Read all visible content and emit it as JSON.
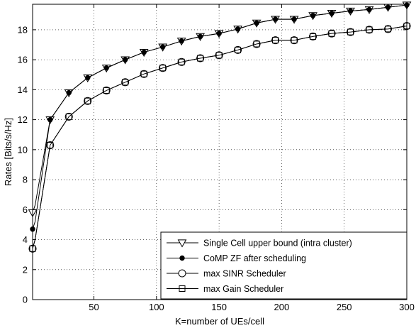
{
  "chart_data": {
    "type": "line",
    "title": "",
    "xlabel": "K=number of UEs/cell",
    "ylabel": "Rates [Bits/s/Hz]",
    "xlim": [
      1,
      300
    ],
    "ylim": [
      0,
      19.7
    ],
    "xticks": [
      50,
      100,
      150,
      200,
      250,
      300
    ],
    "yticks": [
      0,
      2,
      4,
      6,
      8,
      10,
      12,
      14,
      16,
      18
    ],
    "grid": true,
    "legend_position": "bottom-right",
    "x": [
      1,
      3,
      15,
      30,
      45,
      60,
      75,
      90,
      105,
      120,
      135,
      150,
      165,
      180,
      195,
      210,
      225,
      240,
      255,
      270,
      285,
      300
    ],
    "series": [
      {
        "name": "Single Cell upper bound (intra cluster)",
        "marker": "triangle-down",
        "values": [
          5.8,
          6.3,
          12.0,
          13.8,
          14.8,
          15.45,
          16.0,
          16.5,
          16.85,
          17.25,
          17.55,
          17.75,
          18.05,
          18.45,
          18.7,
          18.7,
          18.95,
          19.1,
          19.25,
          19.35,
          19.5,
          19.65
        ]
      },
      {
        "name": "CoMP ZF after scheduling",
        "marker": "filled-circle",
        "values": [
          4.7,
          5.2,
          12.0,
          13.8,
          14.8,
          15.45,
          16.0,
          16.5,
          16.85,
          17.25,
          17.55,
          17.75,
          18.05,
          18.45,
          18.7,
          18.7,
          18.95,
          19.1,
          19.25,
          19.35,
          19.5,
          19.65
        ]
      },
      {
        "name": "max SINR Scheduler",
        "marker": "circle",
        "values": [
          3.4,
          4.0,
          10.3,
          12.2,
          13.25,
          13.95,
          14.5,
          15.05,
          15.45,
          15.85,
          16.1,
          16.3,
          16.65,
          17.05,
          17.3,
          17.3,
          17.55,
          17.75,
          17.85,
          18.0,
          18.05,
          18.25
        ]
      },
      {
        "name": "max Gain Scheduler",
        "marker": "square",
        "values": [
          3.4,
          4.0,
          10.3,
          12.2,
          13.25,
          13.95,
          14.5,
          15.05,
          15.45,
          15.85,
          16.1,
          16.3,
          16.65,
          17.05,
          17.3,
          17.3,
          17.55,
          17.75,
          17.85,
          18.0,
          18.05,
          18.25
        ]
      }
    ]
  }
}
